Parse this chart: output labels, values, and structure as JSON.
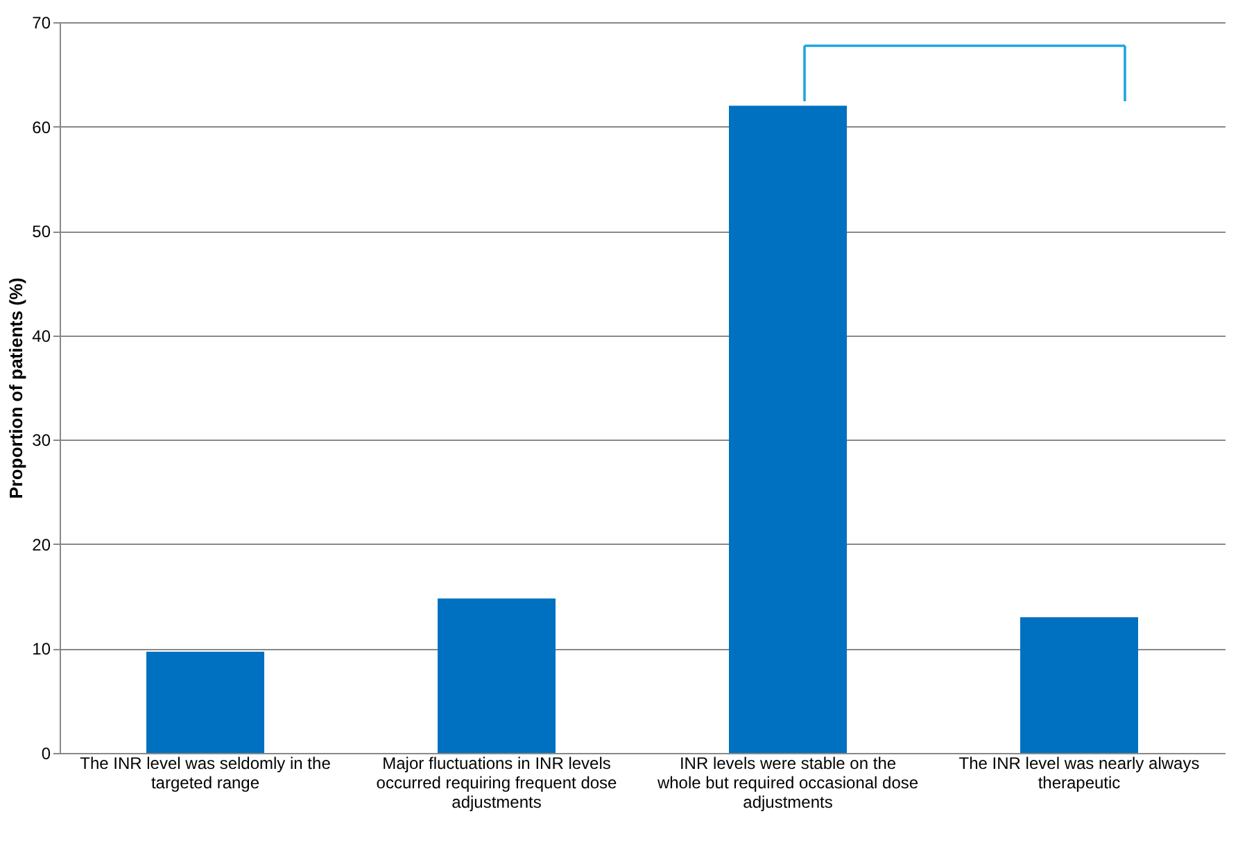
{
  "chart_data": {
    "type": "bar",
    "ylabel": "Proportion of patients (%)",
    "categories": [
      "The INR level was seldomly in the targeted range",
      "Major fluctuations in INR levels occurred requiring frequent dose adjustments",
      "INR levels were stable on the whole but required occasional dose adjustments",
      "The INR level was nearly always therapeutic"
    ],
    "values": [
      9.7,
      14.8,
      62,
      13
    ],
    "color": "#0070c0",
    "ylim": [
      0,
      70
    ],
    "yticks": [
      0,
      10,
      20,
      30,
      40,
      50,
      60,
      70
    ],
    "grid": "y"
  }
}
